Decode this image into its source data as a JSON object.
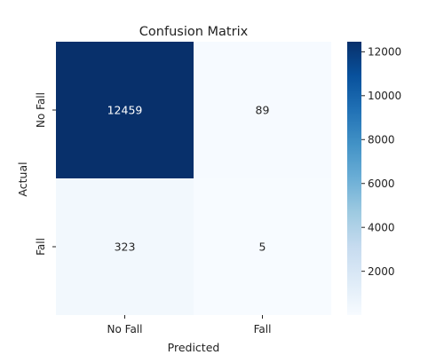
{
  "chart_data": {
    "type": "heatmap",
    "title": "Confusion Matrix",
    "xlabel": "Predicted",
    "ylabel": "Actual",
    "x_categories": [
      "No Fall",
      "Fall"
    ],
    "y_categories": [
      "No Fall",
      "Fall"
    ],
    "values": [
      [
        12459,
        89
      ],
      [
        323,
        5
      ]
    ],
    "cell_labels": [
      [
        "12459",
        "89"
      ],
      [
        "323",
        "5"
      ]
    ],
    "colormap": "Blues",
    "colors": {
      "min": "#f7fbff",
      "max": "#08306b"
    },
    "colorbar": {
      "range": [
        5,
        12459
      ],
      "ticks": [
        2000,
        4000,
        6000,
        8000,
        10000,
        12000
      ],
      "tick_labels": [
        "2000",
        "4000",
        "6000",
        "8000",
        "10000",
        "12000"
      ]
    }
  }
}
